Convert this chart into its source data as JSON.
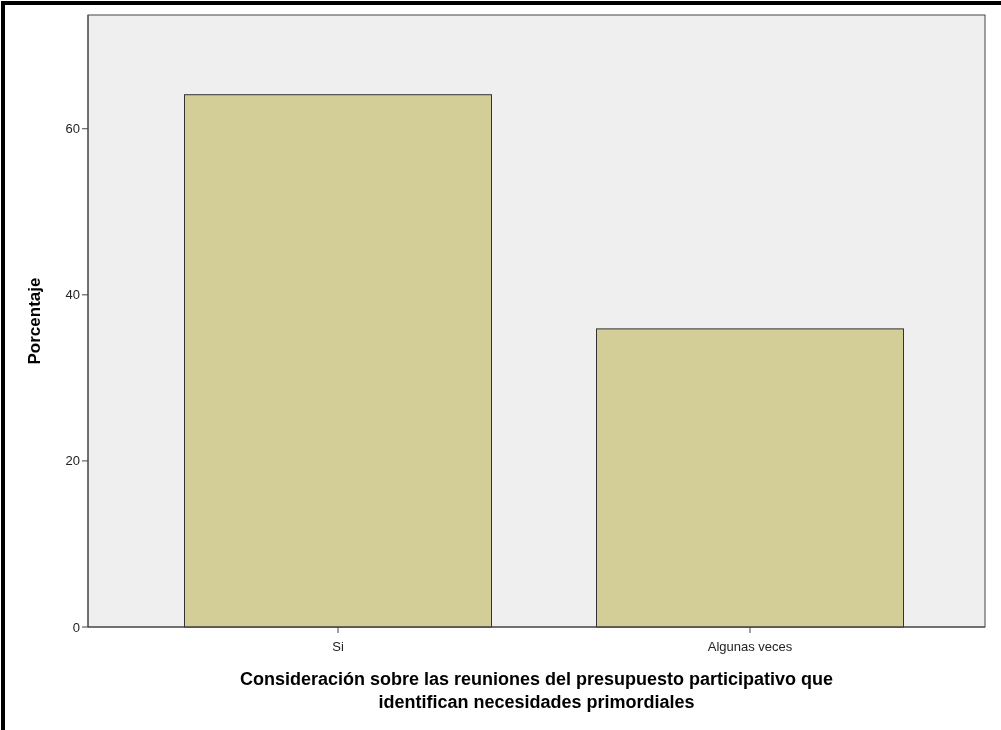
{
  "chart_data": {
    "type": "bar",
    "xlabel": "Consideración sobre las reuniones del presupuesto participativo que identifican necesidades primordiales",
    "ylabel": "Porcentaje",
    "categories": [
      "Si",
      "Algunas veces"
    ],
    "values": [
      64.1,
      35.9
    ],
    "color": "#d3ce98",
    "ylim": [
      0,
      73.7
    ],
    "yticks": [
      0,
      20,
      40,
      60
    ],
    "grid": false
  }
}
